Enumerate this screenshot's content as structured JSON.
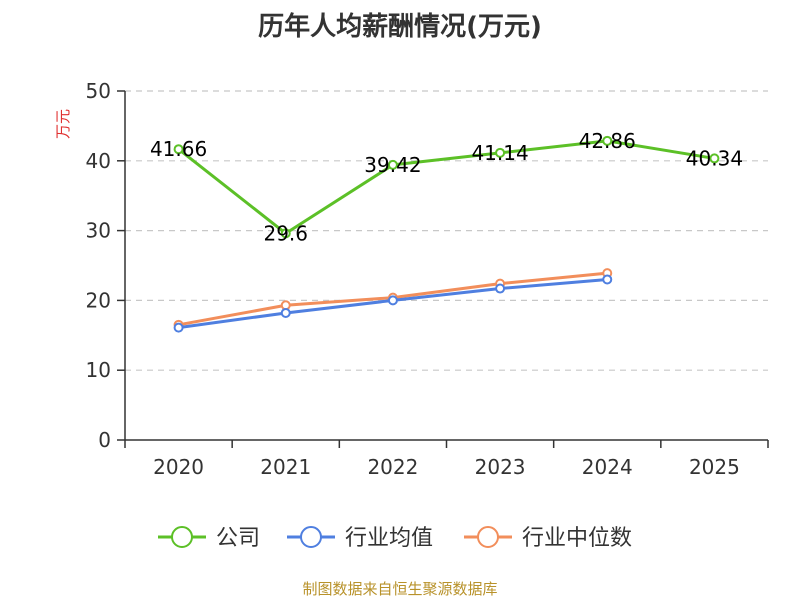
{
  "chart_data": {
    "type": "line",
    "title": "历年人均薪酬情况(万元)",
    "ylabel": "万元",
    "xlabel": "",
    "categories": [
      "2020",
      "2021",
      "2022",
      "2023",
      "2024",
      "2025"
    ],
    "ylim": [
      0,
      50
    ],
    "yticks": [
      "0",
      "10",
      "20",
      "30",
      "40",
      "50"
    ],
    "grid": true,
    "legend_position": "bottom",
    "series": [
      {
        "name": "公司",
        "color": "#5cc027",
        "values": [
          41.66,
          29.6,
          39.42,
          41.14,
          42.86,
          40.34
        ],
        "labels": [
          "41.66",
          "29.6",
          "39.42",
          "41.14",
          "42.86",
          "40.34"
        ]
      },
      {
        "name": "行业均值",
        "color": "#4f7fe0",
        "values": [
          16.1,
          18.2,
          20.0,
          21.7,
          23.0,
          null
        ]
      },
      {
        "name": "行业中位数",
        "color": "#f28e5b",
        "values": [
          16.5,
          19.3,
          20.4,
          22.4,
          23.9,
          null
        ]
      }
    ],
    "source": "制图数据来自恒生聚源数据库"
  }
}
